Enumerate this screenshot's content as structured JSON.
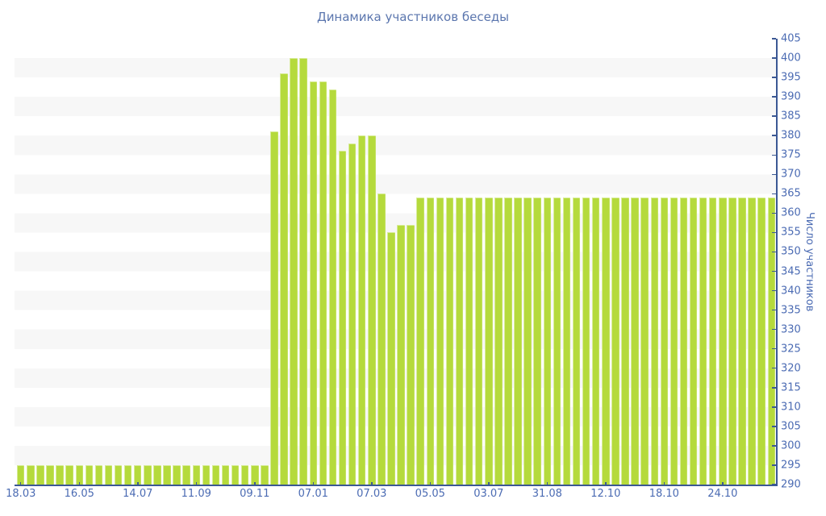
{
  "chart_data": {
    "type": "bar",
    "title": "Динамика участников беседы",
    "xlabel": "",
    "ylabel": "Число участников",
    "ylim": [
      290,
      405
    ],
    "y_tick_step": 5,
    "y_ticks": [
      290,
      295,
      300,
      305,
      310,
      315,
      320,
      325,
      330,
      335,
      340,
      345,
      350,
      355,
      360,
      365,
      370,
      375,
      380,
      385,
      390,
      395,
      400,
      405
    ],
    "x_tick_labels": [
      "18.03",
      "16.05",
      "14.07",
      "11.09",
      "09.11",
      "07.01",
      "07.03",
      "05.05",
      "03.07",
      "31.08",
      "12.10",
      "18.10",
      "24.10"
    ],
    "x_label_every_n_bars": 6,
    "grid": "horizontal-striped-bands",
    "legend": "none",
    "y_axis_position": "right",
    "colors": {
      "bar": "#b5da3c",
      "title": "#5b76ae",
      "tick_label": "#4b6bb3",
      "axis_line": "#3b5894",
      "stripe_band": "#f7f7f7",
      "background": "#ffffff"
    },
    "values": [
      295,
      295,
      295,
      295,
      295,
      295,
      295,
      295,
      295,
      295,
      295,
      295,
      295,
      295,
      295,
      295,
      295,
      295,
      295,
      295,
      295,
      295,
      295,
      295,
      295,
      295,
      381,
      396,
      400,
      400,
      394,
      394,
      392,
      376,
      378,
      380,
      380,
      365,
      355,
      357,
      357,
      364,
      364,
      364,
      364,
      364,
      364,
      364,
      364,
      364,
      364,
      364,
      364,
      364,
      364,
      364,
      364,
      364,
      364,
      364,
      364,
      364,
      364,
      364,
      364,
      364,
      364,
      364,
      364,
      364,
      364,
      364,
      364,
      364,
      364,
      364,
      364,
      364
    ]
  }
}
